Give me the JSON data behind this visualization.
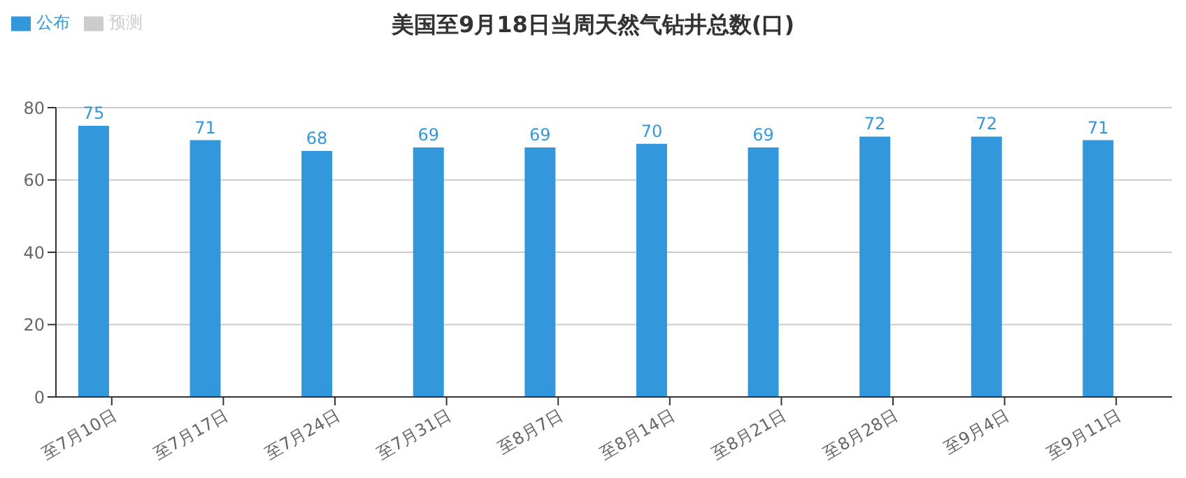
{
  "chart_data": {
    "type": "bar",
    "title": "美国至9月18日当周天然气钻井总数(口)",
    "categories": [
      "至7月10日",
      "至7月17日",
      "至7月24日",
      "至7月31日",
      "至8月7日",
      "至8月14日",
      "至8月21日",
      "至8月28日",
      "至9月4日",
      "至9月11日"
    ],
    "series": [
      {
        "name": "公布",
        "color": "#3398db",
        "values": [
          75,
          71,
          68,
          69,
          69,
          70,
          69,
          72,
          72,
          71
        ]
      },
      {
        "name": "预测",
        "color": "#cccccc",
        "values": [
          null,
          null,
          null,
          null,
          null,
          null,
          null,
          null,
          null,
          null
        ]
      }
    ],
    "ylim": [
      0,
      80
    ],
    "yticks": [
      0,
      20,
      40,
      60,
      80
    ],
    "grid": "y",
    "legend": "top left",
    "data_labels": true
  }
}
